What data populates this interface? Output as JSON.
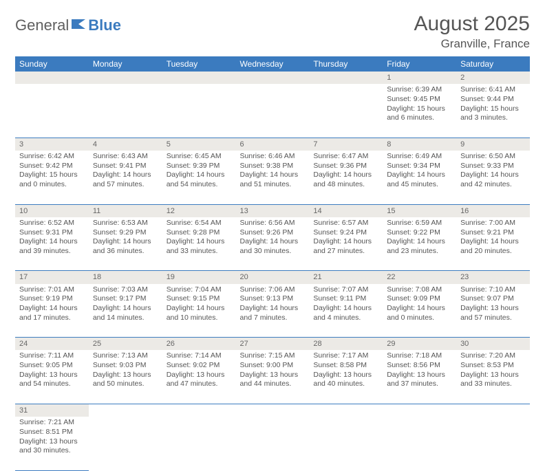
{
  "header": {
    "logo_general": "General",
    "logo_blue": "Blue",
    "title": "August 2025",
    "location": "Granville, France"
  },
  "columns": [
    "Sunday",
    "Monday",
    "Tuesday",
    "Wednesday",
    "Thursday",
    "Friday",
    "Saturday"
  ],
  "colors": {
    "header_bg": "#3b7bbf",
    "header_text": "#ffffff",
    "daynum_bg": "#eceae6",
    "border": "#3b7bbf",
    "text": "#555555"
  },
  "weeks": [
    [
      null,
      null,
      null,
      null,
      null,
      {
        "n": "1",
        "sr": "Sunrise: 6:39 AM",
        "ss": "Sunset: 9:45 PM",
        "d1": "Daylight: 15 hours",
        "d2": "and 6 minutes."
      },
      {
        "n": "2",
        "sr": "Sunrise: 6:41 AM",
        "ss": "Sunset: 9:44 PM",
        "d1": "Daylight: 15 hours",
        "d2": "and 3 minutes."
      }
    ],
    [
      {
        "n": "3",
        "sr": "Sunrise: 6:42 AM",
        "ss": "Sunset: 9:42 PM",
        "d1": "Daylight: 15 hours",
        "d2": "and 0 minutes."
      },
      {
        "n": "4",
        "sr": "Sunrise: 6:43 AM",
        "ss": "Sunset: 9:41 PM",
        "d1": "Daylight: 14 hours",
        "d2": "and 57 minutes."
      },
      {
        "n": "5",
        "sr": "Sunrise: 6:45 AM",
        "ss": "Sunset: 9:39 PM",
        "d1": "Daylight: 14 hours",
        "d2": "and 54 minutes."
      },
      {
        "n": "6",
        "sr": "Sunrise: 6:46 AM",
        "ss": "Sunset: 9:38 PM",
        "d1": "Daylight: 14 hours",
        "d2": "and 51 minutes."
      },
      {
        "n": "7",
        "sr": "Sunrise: 6:47 AM",
        "ss": "Sunset: 9:36 PM",
        "d1": "Daylight: 14 hours",
        "d2": "and 48 minutes."
      },
      {
        "n": "8",
        "sr": "Sunrise: 6:49 AM",
        "ss": "Sunset: 9:34 PM",
        "d1": "Daylight: 14 hours",
        "d2": "and 45 minutes."
      },
      {
        "n": "9",
        "sr": "Sunrise: 6:50 AM",
        "ss": "Sunset: 9:33 PM",
        "d1": "Daylight: 14 hours",
        "d2": "and 42 minutes."
      }
    ],
    [
      {
        "n": "10",
        "sr": "Sunrise: 6:52 AM",
        "ss": "Sunset: 9:31 PM",
        "d1": "Daylight: 14 hours",
        "d2": "and 39 minutes."
      },
      {
        "n": "11",
        "sr": "Sunrise: 6:53 AM",
        "ss": "Sunset: 9:29 PM",
        "d1": "Daylight: 14 hours",
        "d2": "and 36 minutes."
      },
      {
        "n": "12",
        "sr": "Sunrise: 6:54 AM",
        "ss": "Sunset: 9:28 PM",
        "d1": "Daylight: 14 hours",
        "d2": "and 33 minutes."
      },
      {
        "n": "13",
        "sr": "Sunrise: 6:56 AM",
        "ss": "Sunset: 9:26 PM",
        "d1": "Daylight: 14 hours",
        "d2": "and 30 minutes."
      },
      {
        "n": "14",
        "sr": "Sunrise: 6:57 AM",
        "ss": "Sunset: 9:24 PM",
        "d1": "Daylight: 14 hours",
        "d2": "and 27 minutes."
      },
      {
        "n": "15",
        "sr": "Sunrise: 6:59 AM",
        "ss": "Sunset: 9:22 PM",
        "d1": "Daylight: 14 hours",
        "d2": "and 23 minutes."
      },
      {
        "n": "16",
        "sr": "Sunrise: 7:00 AM",
        "ss": "Sunset: 9:21 PM",
        "d1": "Daylight: 14 hours",
        "d2": "and 20 minutes."
      }
    ],
    [
      {
        "n": "17",
        "sr": "Sunrise: 7:01 AM",
        "ss": "Sunset: 9:19 PM",
        "d1": "Daylight: 14 hours",
        "d2": "and 17 minutes."
      },
      {
        "n": "18",
        "sr": "Sunrise: 7:03 AM",
        "ss": "Sunset: 9:17 PM",
        "d1": "Daylight: 14 hours",
        "d2": "and 14 minutes."
      },
      {
        "n": "19",
        "sr": "Sunrise: 7:04 AM",
        "ss": "Sunset: 9:15 PM",
        "d1": "Daylight: 14 hours",
        "d2": "and 10 minutes."
      },
      {
        "n": "20",
        "sr": "Sunrise: 7:06 AM",
        "ss": "Sunset: 9:13 PM",
        "d1": "Daylight: 14 hours",
        "d2": "and 7 minutes."
      },
      {
        "n": "21",
        "sr": "Sunrise: 7:07 AM",
        "ss": "Sunset: 9:11 PM",
        "d1": "Daylight: 14 hours",
        "d2": "and 4 minutes."
      },
      {
        "n": "22",
        "sr": "Sunrise: 7:08 AM",
        "ss": "Sunset: 9:09 PM",
        "d1": "Daylight: 14 hours",
        "d2": "and 0 minutes."
      },
      {
        "n": "23",
        "sr": "Sunrise: 7:10 AM",
        "ss": "Sunset: 9:07 PM",
        "d1": "Daylight: 13 hours",
        "d2": "and 57 minutes."
      }
    ],
    [
      {
        "n": "24",
        "sr": "Sunrise: 7:11 AM",
        "ss": "Sunset: 9:05 PM",
        "d1": "Daylight: 13 hours",
        "d2": "and 54 minutes."
      },
      {
        "n": "25",
        "sr": "Sunrise: 7:13 AM",
        "ss": "Sunset: 9:03 PM",
        "d1": "Daylight: 13 hours",
        "d2": "and 50 minutes."
      },
      {
        "n": "26",
        "sr": "Sunrise: 7:14 AM",
        "ss": "Sunset: 9:02 PM",
        "d1": "Daylight: 13 hours",
        "d2": "and 47 minutes."
      },
      {
        "n": "27",
        "sr": "Sunrise: 7:15 AM",
        "ss": "Sunset: 9:00 PM",
        "d1": "Daylight: 13 hours",
        "d2": "and 44 minutes."
      },
      {
        "n": "28",
        "sr": "Sunrise: 7:17 AM",
        "ss": "Sunset: 8:58 PM",
        "d1": "Daylight: 13 hours",
        "d2": "and 40 minutes."
      },
      {
        "n": "29",
        "sr": "Sunrise: 7:18 AM",
        "ss": "Sunset: 8:56 PM",
        "d1": "Daylight: 13 hours",
        "d2": "and 37 minutes."
      },
      {
        "n": "30",
        "sr": "Sunrise: 7:20 AM",
        "ss": "Sunset: 8:53 PM",
        "d1": "Daylight: 13 hours",
        "d2": "and 33 minutes."
      }
    ],
    [
      {
        "n": "31",
        "sr": "Sunrise: 7:21 AM",
        "ss": "Sunset: 8:51 PM",
        "d1": "Daylight: 13 hours",
        "d2": "and 30 minutes."
      },
      null,
      null,
      null,
      null,
      null,
      null
    ]
  ]
}
